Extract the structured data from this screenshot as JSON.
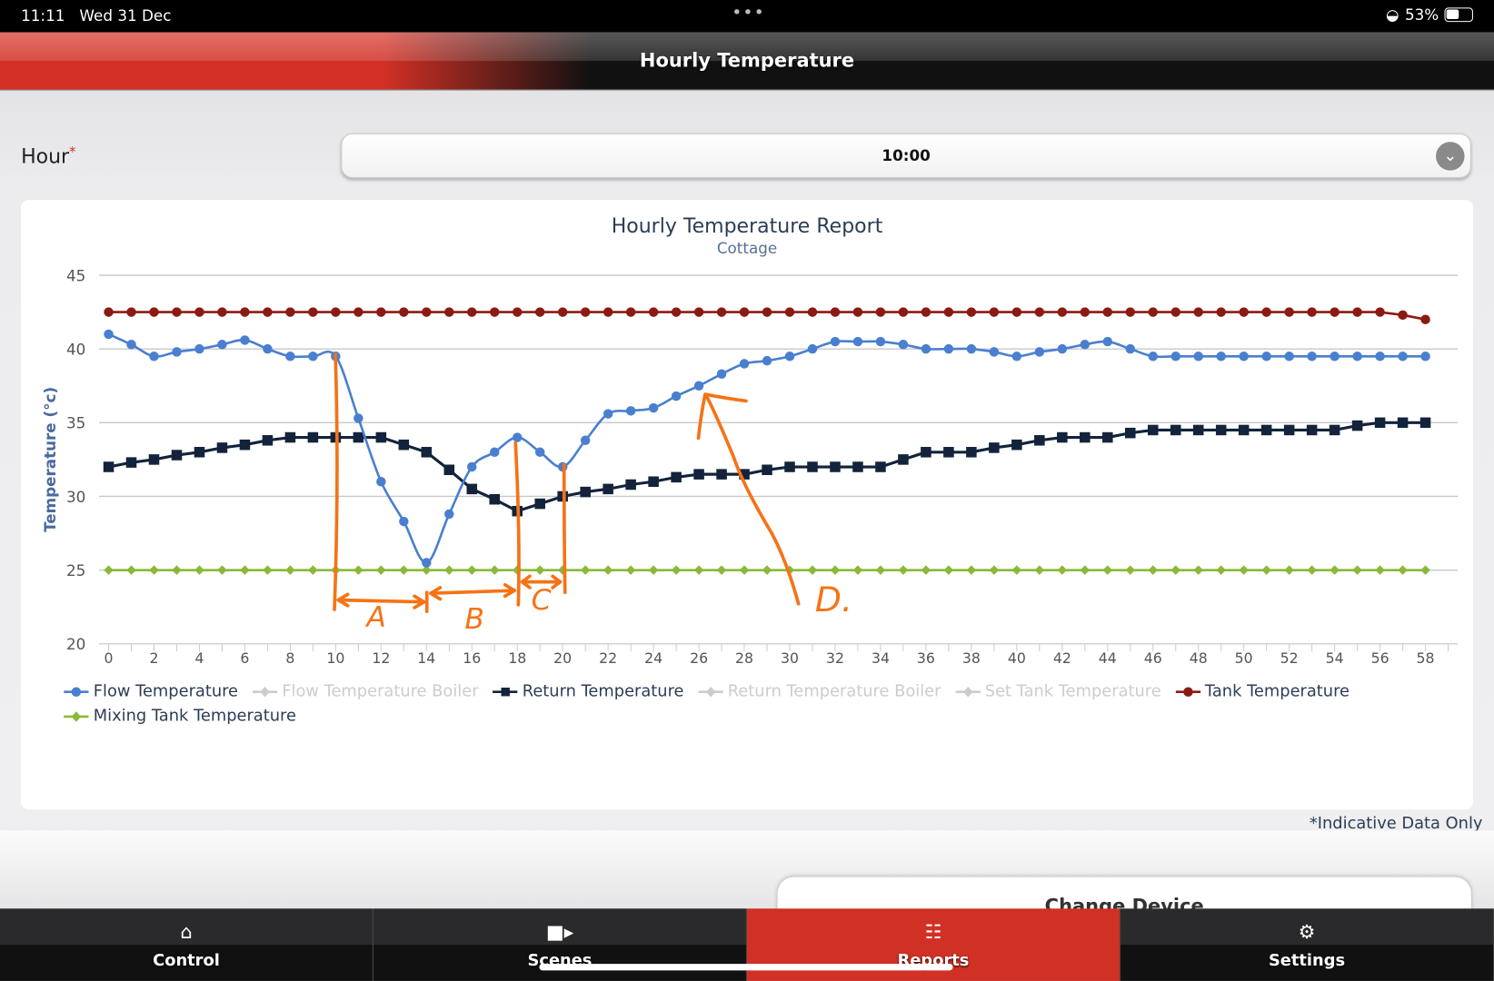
{
  "status_bar": {
    "time": "11:11",
    "date": "Wed 31 Dec",
    "battery": "53%",
    "dots": "•••"
  },
  "header": {
    "title": "Hourly Temperature"
  },
  "hour_field": {
    "label": "Hour",
    "required_mark": "*",
    "value": "10:00"
  },
  "note": "*Indicative Data Only",
  "change_device": "Change Device",
  "tabs": [
    {
      "label": "Control",
      "icon": "home-icon"
    },
    {
      "label": "Scenes",
      "icon": "video-camera-icon"
    },
    {
      "label": "Reports",
      "icon": "grid-icon",
      "active": true
    },
    {
      "label": "Settings",
      "icon": "gear-icon"
    }
  ],
  "colors": {
    "flow": "#4a7fd0",
    "return": "#13233b",
    "tank": "#8b1a13",
    "mixing": "#8ab83a",
    "disabled": "#cccccc",
    "annotation": "#f57316",
    "accent": "#d13025"
  },
  "chart_data": {
    "type": "line",
    "title": "Hourly Temperature Report",
    "subtitle": "Cottage",
    "ylabel": "Temperature (°c)",
    "xlabel": "",
    "ylim": [
      20,
      45
    ],
    "yticks": [
      20,
      25,
      30,
      35,
      40,
      45
    ],
    "xlim": [
      0,
      58
    ],
    "xticks": [
      0,
      2,
      4,
      6,
      8,
      10,
      12,
      14,
      16,
      18,
      20,
      22,
      24,
      26,
      28,
      30,
      32,
      34,
      36,
      38,
      40,
      42,
      44,
      46,
      48,
      50,
      52,
      54,
      56,
      58
    ],
    "grid": true,
    "legend_placement": "bottom",
    "legend": [
      {
        "name": "Flow Temperature",
        "enabled": true,
        "marker": "circle"
      },
      {
        "name": "Flow Temperature Boiler",
        "enabled": false,
        "marker": "diamond"
      },
      {
        "name": "Return Temperature",
        "enabled": true,
        "marker": "square"
      },
      {
        "name": "Return Temperature Boiler",
        "enabled": false,
        "marker": "triangle"
      },
      {
        "name": "Set Tank Temperature",
        "enabled": false,
        "marker": "triangle-down"
      },
      {
        "name": "Tank Temperature",
        "enabled": true,
        "marker": "circle"
      },
      {
        "name": "Mixing Tank Temperature",
        "enabled": true,
        "marker": "diamond"
      }
    ],
    "series": [
      {
        "name": "Flow Temperature",
        "color": "#4a7fd0",
        "marker": "circle",
        "smooth": true,
        "values": [
          41,
          40.3,
          39.5,
          39.8,
          40,
          40.3,
          40.6,
          40,
          39.5,
          39.5,
          39.5,
          35.3,
          31,
          28.3,
          25.5,
          28.8,
          32,
          33,
          34,
          33,
          32,
          33.8,
          35.6,
          35.8,
          36,
          36.8,
          37.5,
          38.3,
          39,
          39.2,
          39.5,
          40,
          40.5,
          40.5,
          40.5,
          40.3,
          40,
          40,
          40,
          39.8,
          39.5,
          39.8,
          40,
          40.3,
          40.5,
          40,
          39.5,
          39.5,
          39.5,
          39.5,
          39.5,
          39.5,
          39.5,
          39.5,
          39.5,
          39.5,
          39.5,
          39.5,
          39.5
        ]
      },
      {
        "name": "Return Temperature",
        "color": "#13233b",
        "marker": "square",
        "smooth": false,
        "values": [
          32,
          32.3,
          32.5,
          32.8,
          33,
          33.3,
          33.5,
          33.8,
          34,
          34,
          34,
          34,
          34,
          33.5,
          33,
          31.8,
          30.5,
          29.8,
          29,
          29.5,
          30,
          30.3,
          30.5,
          30.8,
          31,
          31.3,
          31.5,
          31.5,
          31.5,
          31.8,
          32,
          32,
          32,
          32,
          32,
          32.5,
          33,
          33,
          33,
          33.3,
          33.5,
          33.8,
          34,
          34,
          34,
          34.3,
          34.5,
          34.5,
          34.5,
          34.5,
          34.5,
          34.5,
          34.5,
          34.5,
          34.5,
          34.8,
          35,
          35,
          35
        ]
      },
      {
        "name": "Tank Temperature",
        "color": "#8b1a13",
        "marker": "circle",
        "smooth": false,
        "values": [
          42.5,
          42.5,
          42.5,
          42.5,
          42.5,
          42.5,
          42.5,
          42.5,
          42.5,
          42.5,
          42.5,
          42.5,
          42.5,
          42.5,
          42.5,
          42.5,
          42.5,
          42.5,
          42.5,
          42.5,
          42.5,
          42.5,
          42.5,
          42.5,
          42.5,
          42.5,
          42.5,
          42.5,
          42.5,
          42.5,
          42.5,
          42.5,
          42.5,
          42.5,
          42.5,
          42.5,
          42.5,
          42.5,
          42.5,
          42.5,
          42.5,
          42.5,
          42.5,
          42.5,
          42.5,
          42.5,
          42.5,
          42.5,
          42.5,
          42.5,
          42.5,
          42.5,
          42.5,
          42.5,
          42.5,
          42.5,
          42.5,
          42.3,
          42
        ]
      },
      {
        "name": "Mixing Tank Temperature",
        "color": "#8ab83a",
        "marker": "diamond",
        "smooth": false,
        "values": [
          25,
          25,
          25,
          25,
          25,
          25,
          25,
          25,
          25,
          25,
          25,
          25,
          25,
          25,
          25,
          25,
          25,
          25,
          25,
          25,
          25,
          25,
          25,
          25,
          25,
          25,
          25,
          25,
          25,
          25,
          25,
          25,
          25,
          25,
          25,
          25,
          25,
          25,
          25,
          25,
          25,
          25,
          25,
          25,
          25,
          25,
          25,
          25,
          25,
          25,
          25,
          25,
          25,
          25,
          25,
          25,
          25,
          25,
          25
        ]
      }
    ],
    "annotations": [
      {
        "label": "A",
        "from": 10,
        "to": 14
      },
      {
        "label": "B",
        "from": 14,
        "to": 18
      },
      {
        "label": "C",
        "from": 18,
        "to": 20
      },
      {
        "label": "D.",
        "points_to": 26
      }
    ]
  }
}
